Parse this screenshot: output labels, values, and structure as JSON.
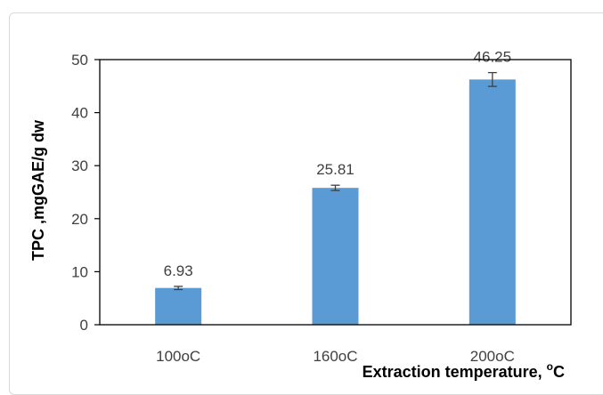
{
  "chart_data": {
    "type": "bar",
    "categories": [
      "100oC",
      "160oC",
      "200oC"
    ],
    "values": [
      6.93,
      25.81,
      46.25
    ],
    "data_labels": [
      "6.93",
      "25.81",
      "46.25"
    ],
    "error": [
      0.3,
      0.5,
      1.3
    ],
    "ylim": [
      0,
      50
    ],
    "yticks": [
      0,
      10,
      20,
      30,
      40,
      50
    ],
    "ylabel": "TPC ,mgGAE/g dw",
    "xlabel": "Extraction temperature, ",
    "xlabel_sup": "o",
    "xlabel_tail": "C",
    "bar_color": "#5B9BD5",
    "error_bar_color": "#404040",
    "grid": false,
    "legend": "none"
  }
}
